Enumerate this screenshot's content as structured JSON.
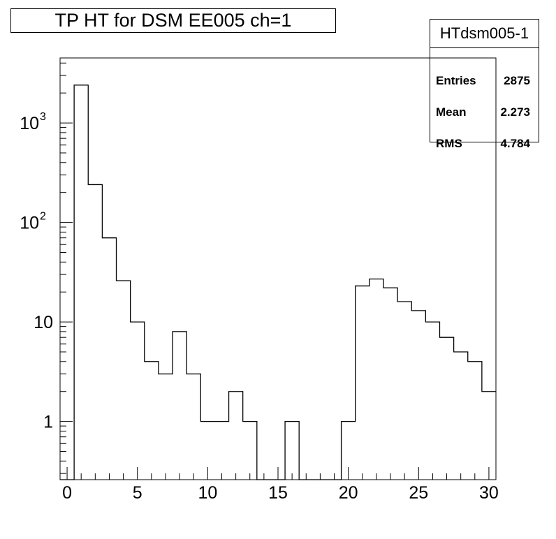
{
  "chart_data": {
    "type": "bar",
    "title": "TP HT for DSM EE005 ch=1",
    "stats": {
      "name": "HTdsm005-1",
      "rows": [
        {
          "label": "Entries",
          "value": "2875"
        },
        {
          "label": "Mean",
          "value": "2.273"
        },
        {
          "label": "RMS",
          "value": "4.784"
        }
      ]
    },
    "xlim": [
      -0.5,
      30.5
    ],
    "ylim": [
      0.26,
      4500
    ],
    "yscale": "log",
    "bin_width": 1,
    "bins": [
      {
        "x": 0,
        "y": 0
      },
      {
        "x": 1,
        "y": 2400
      },
      {
        "x": 2,
        "y": 240
      },
      {
        "x": 3,
        "y": 70
      },
      {
        "x": 4,
        "y": 26
      },
      {
        "x": 5,
        "y": 10
      },
      {
        "x": 6,
        "y": 4
      },
      {
        "x": 7,
        "y": 3
      },
      {
        "x": 8,
        "y": 8
      },
      {
        "x": 9,
        "y": 3
      },
      {
        "x": 10,
        "y": 1
      },
      {
        "x": 11,
        "y": 1
      },
      {
        "x": 12,
        "y": 2
      },
      {
        "x": 13,
        "y": 1
      },
      {
        "x": 14,
        "y": 0
      },
      {
        "x": 15,
        "y": 0
      },
      {
        "x": 16,
        "y": 1
      },
      {
        "x": 17,
        "y": 0
      },
      {
        "x": 18,
        "y": 0
      },
      {
        "x": 19,
        "y": 0
      },
      {
        "x": 20,
        "y": 1
      },
      {
        "x": 21,
        "y": 23
      },
      {
        "x": 22,
        "y": 27
      },
      {
        "x": 23,
        "y": 22
      },
      {
        "x": 24,
        "y": 16
      },
      {
        "x": 25,
        "y": 13
      },
      {
        "x": 26,
        "y": 10
      },
      {
        "x": 27,
        "y": 7
      },
      {
        "x": 28,
        "y": 5
      },
      {
        "x": 29,
        "y": 4
      },
      {
        "x": 30,
        "y": 2
      }
    ],
    "x_ticks": [
      0,
      5,
      10,
      15,
      20,
      25,
      30
    ],
    "y_ticks": [
      {
        "value": 1,
        "label": "1"
      },
      {
        "value": 10,
        "label": "10"
      },
      {
        "value": 100,
        "base": "10",
        "exp": "2"
      },
      {
        "value": 1000,
        "base": "10",
        "exp": "3"
      }
    ],
    "grid": false,
    "legend": "none"
  }
}
